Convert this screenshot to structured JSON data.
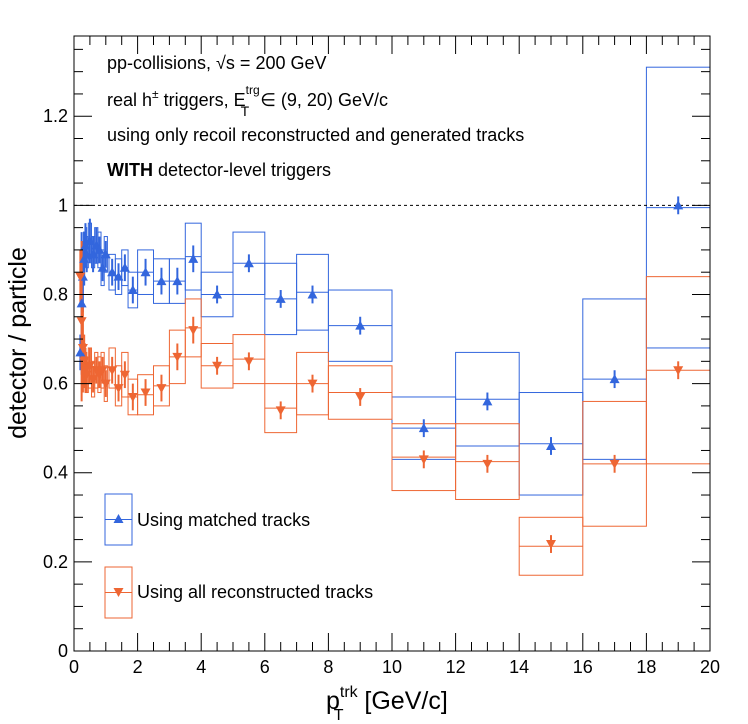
{
  "chart_data": {
    "type": "scatter",
    "xlabel": "p_T^trk [GeV/c]",
    "xlabel_main": "p",
    "xlabel_sub": "T",
    "xlabel_sup": "trk",
    "xlabel_rest": " [GeV/c]",
    "ylabel": "detector / particle",
    "xlim": [
      0,
      20
    ],
    "ylim": [
      0,
      1.38
    ],
    "x_ticks": [
      0,
      2,
      4,
      6,
      8,
      10,
      12,
      14,
      16,
      18,
      20
    ],
    "y_ticks": [
      0,
      0.2,
      0.4,
      0.6,
      0.8,
      1,
      1.2
    ],
    "x_tick_labels": [
      "0",
      "2",
      "4",
      "6",
      "8",
      "10",
      "12",
      "14",
      "16",
      "18",
      "20"
    ],
    "y_tick_labels": [
      "0",
      "0.2",
      "0.4",
      "0.6",
      "0.8",
      "1",
      "1.2"
    ],
    "reference_line": 1,
    "annotations": {
      "line1": "pp-collisions, √s = 200 GeV",
      "line2_a": "real h",
      "line2_sup": "±",
      "line2_b": " triggers, E",
      "line2_e_sup": "trg",
      "line2_e_sub": "T",
      "line2_c": " ∈ (9, 20) GeV/c",
      "line3": "using only recoil reconstructed and generated tracks",
      "line4_bold": "WITH",
      "line4_rest": " detector-level triggers"
    },
    "legend_placement": "bottom-left",
    "series": [
      {
        "name": "Using matched tracks",
        "marker": "triangle-up",
        "color": "#3366dd",
        "points": [
          {
            "x": 0.2,
            "y": 0.67,
            "yerr": 0.04
          },
          {
            "x": 0.24,
            "y": 0.78,
            "yerr": 0.16
          },
          {
            "x": 0.28,
            "y": 0.84,
            "yerr": 0.08
          },
          {
            "x": 0.32,
            "y": 0.88,
            "yerr": 0.06
          },
          {
            "x": 0.36,
            "y": 0.91,
            "yerr": 0.05
          },
          {
            "x": 0.4,
            "y": 0.89,
            "yerr": 0.04
          },
          {
            "x": 0.5,
            "y": 0.92,
            "yerr": 0.05
          },
          {
            "x": 0.6,
            "y": 0.89,
            "yerr": 0.04
          },
          {
            "x": 0.7,
            "y": 0.91,
            "yerr": 0.04
          },
          {
            "x": 0.8,
            "y": 0.9,
            "yerr": 0.03
          },
          {
            "x": 0.9,
            "y": 0.86,
            "yerr": 0.03
          },
          {
            "x": 1.0,
            "y": 0.89,
            "yerr": 0.03
          },
          {
            "x": 1.2,
            "y": 0.85,
            "yerr": 0.03
          },
          {
            "x": 1.4,
            "y": 0.84,
            "yerr": 0.03
          },
          {
            "x": 1.6,
            "y": 0.86,
            "yerr": 0.03
          },
          {
            "x": 1.85,
            "y": 0.81,
            "yerr": 0.03
          },
          {
            "x": 2.25,
            "y": 0.85,
            "yerr": 0.03
          },
          {
            "x": 2.75,
            "y": 0.83,
            "yerr": 0.03
          },
          {
            "x": 3.25,
            "y": 0.83,
            "yerr": 0.03
          },
          {
            "x": 3.75,
            "y": 0.88,
            "yerr": 0.03
          },
          {
            "x": 4.5,
            "y": 0.8,
            "yerr": 0.02
          },
          {
            "x": 5.5,
            "y": 0.87,
            "yerr": 0.02
          },
          {
            "x": 6.5,
            "y": 0.79,
            "yerr": 0.02
          },
          {
            "x": 7.5,
            "y": 0.8,
            "yerr": 0.02
          },
          {
            "x": 9,
            "y": 0.73,
            "yerr": 0.02
          },
          {
            "x": 11,
            "y": 0.5,
            "yerr": 0.02
          },
          {
            "x": 13,
            "y": 0.56,
            "yerr": 0.02
          },
          {
            "x": 15,
            "y": 0.46,
            "yerr": 0.02
          },
          {
            "x": 17,
            "y": 0.61,
            "yerr": 0.02
          },
          {
            "x": 19,
            "y": 1.0,
            "yerr": 0.02
          }
        ],
        "sys_boxes": [
          {
            "x0": 0.3,
            "x1": 0.35,
            "y0": 0.86,
            "y1": 0.94
          },
          {
            "x0": 0.35,
            "x1": 0.4,
            "y0": 0.87,
            "y1": 0.95
          },
          {
            "x0": 0.4,
            "x1": 0.45,
            "y0": 0.86,
            "y1": 0.93
          },
          {
            "x0": 0.45,
            "x1": 0.55,
            "y0": 0.88,
            "y1": 0.96
          },
          {
            "x0": 0.55,
            "x1": 0.65,
            "y0": 0.86,
            "y1": 0.93
          },
          {
            "x0": 0.65,
            "x1": 0.75,
            "y0": 0.87,
            "y1": 0.95
          },
          {
            "x0": 0.75,
            "x1": 0.85,
            "y0": 0.86,
            "y1": 0.94
          },
          {
            "x0": 0.85,
            "x1": 0.95,
            "y0": 0.82,
            "y1": 0.9
          },
          {
            "x0": 0.95,
            "x1": 1.05,
            "y0": 0.85,
            "y1": 0.93
          },
          {
            "x0": 1.1,
            "x1": 1.3,
            "y0": 0.81,
            "y1": 0.89
          },
          {
            "x0": 1.3,
            "x1": 1.5,
            "y0": 0.8,
            "y1": 0.88
          },
          {
            "x0": 1.5,
            "x1": 1.7,
            "y0": 0.82,
            "y1": 0.9
          },
          {
            "x0": 1.7,
            "x1": 2.0,
            "y0": 0.77,
            "y1": 0.85
          },
          {
            "x0": 2.0,
            "x1": 2.5,
            "y0": 0.8,
            "y1": 0.9
          },
          {
            "x0": 2.5,
            "x1": 3.0,
            "y0": 0.78,
            "y1": 0.88
          },
          {
            "x0": 3.0,
            "x1": 3.5,
            "y0": 0.78,
            "y1": 0.88
          },
          {
            "x0": 3.5,
            "x1": 4.0,
            "y0": 0.81,
            "y1": 0.96
          },
          {
            "x0": 4.0,
            "x1": 5.0,
            "y0": 0.75,
            "y1": 0.85
          },
          {
            "x0": 5.0,
            "x1": 6.0,
            "y0": 0.8,
            "y1": 0.94
          },
          {
            "x0": 6.0,
            "x1": 7.0,
            "y0": 0.71,
            "y1": 0.87
          },
          {
            "x0": 7.0,
            "x1": 8.0,
            "y0": 0.72,
            "y1": 0.89
          },
          {
            "x0": 8.0,
            "x1": 10.0,
            "y0": 0.65,
            "y1": 0.81
          },
          {
            "x0": 10.0,
            "x1": 12.0,
            "y0": 0.43,
            "y1": 0.57
          },
          {
            "x0": 12.0,
            "x1": 14.0,
            "y0": 0.46,
            "y1": 0.67
          },
          {
            "x0": 14.0,
            "x1": 16.0,
            "y0": 0.35,
            "y1": 0.58
          },
          {
            "x0": 16.0,
            "x1": 18.0,
            "y0": 0.43,
            "y1": 0.79
          },
          {
            "x0": 18.0,
            "x1": 20.0,
            "y0": 0.68,
            "y1": 1.31
          }
        ]
      },
      {
        "name": "Using all reconstructed tracks",
        "marker": "triangle-down",
        "color": "#ee6633",
        "points": [
          {
            "x": 0.2,
            "y": 0.84,
            "yerr": 0.06
          },
          {
            "x": 0.24,
            "y": 0.74,
            "yerr": 0.18
          },
          {
            "x": 0.28,
            "y": 0.68,
            "yerr": 0.1
          },
          {
            "x": 0.32,
            "y": 0.65,
            "yerr": 0.06
          },
          {
            "x": 0.36,
            "y": 0.63,
            "yerr": 0.05
          },
          {
            "x": 0.4,
            "y": 0.62,
            "yerr": 0.04
          },
          {
            "x": 0.5,
            "y": 0.64,
            "yerr": 0.04
          },
          {
            "x": 0.6,
            "y": 0.61,
            "yerr": 0.03
          },
          {
            "x": 0.7,
            "y": 0.63,
            "yerr": 0.03
          },
          {
            "x": 0.8,
            "y": 0.62,
            "yerr": 0.03
          },
          {
            "x": 0.9,
            "y": 0.63,
            "yerr": 0.03
          },
          {
            "x": 1.0,
            "y": 0.6,
            "yerr": 0.03
          },
          {
            "x": 1.2,
            "y": 0.63,
            "yerr": 0.03
          },
          {
            "x": 1.4,
            "y": 0.59,
            "yerr": 0.03
          },
          {
            "x": 1.6,
            "y": 0.62,
            "yerr": 0.03
          },
          {
            "x": 1.85,
            "y": 0.57,
            "yerr": 0.03
          },
          {
            "x": 2.25,
            "y": 0.58,
            "yerr": 0.03
          },
          {
            "x": 2.75,
            "y": 0.59,
            "yerr": 0.03
          },
          {
            "x": 3.25,
            "y": 0.66,
            "yerr": 0.03
          },
          {
            "x": 3.75,
            "y": 0.72,
            "yerr": 0.03
          },
          {
            "x": 4.5,
            "y": 0.64,
            "yerr": 0.02
          },
          {
            "x": 5.5,
            "y": 0.65,
            "yerr": 0.02
          },
          {
            "x": 6.5,
            "y": 0.54,
            "yerr": 0.02
          },
          {
            "x": 7.5,
            "y": 0.6,
            "yerr": 0.02
          },
          {
            "x": 9,
            "y": 0.57,
            "yerr": 0.02
          },
          {
            "x": 11,
            "y": 0.43,
            "yerr": 0.02
          },
          {
            "x": 13,
            "y": 0.42,
            "yerr": 0.02
          },
          {
            "x": 15,
            "y": 0.24,
            "yerr": 0.02
          },
          {
            "x": 17,
            "y": 0.42,
            "yerr": 0.02
          },
          {
            "x": 19,
            "y": 0.63,
            "yerr": 0.02
          }
        ],
        "sys_boxes": [
          {
            "x0": 0.3,
            "x1": 0.35,
            "y0": 0.6,
            "y1": 0.69
          },
          {
            "x0": 0.35,
            "x1": 0.4,
            "y0": 0.58,
            "y1": 0.67
          },
          {
            "x0": 0.4,
            "x1": 0.45,
            "y0": 0.58,
            "y1": 0.66
          },
          {
            "x0": 0.45,
            "x1": 0.55,
            "y0": 0.59,
            "y1": 0.68
          },
          {
            "x0": 0.55,
            "x1": 0.65,
            "y0": 0.57,
            "y1": 0.65
          },
          {
            "x0": 0.65,
            "x1": 0.75,
            "y0": 0.59,
            "y1": 0.67
          },
          {
            "x0": 0.75,
            "x1": 0.85,
            "y0": 0.58,
            "y1": 0.66
          },
          {
            "x0": 0.85,
            "x1": 0.95,
            "y0": 0.59,
            "y1": 0.67
          },
          {
            "x0": 0.95,
            "x1": 1.05,
            "y0": 0.56,
            "y1": 0.64
          },
          {
            "x0": 1.1,
            "x1": 1.3,
            "y0": 0.59,
            "y1": 0.68
          },
          {
            "x0": 1.3,
            "x1": 1.5,
            "y0": 0.55,
            "y1": 0.64
          },
          {
            "x0": 1.5,
            "x1": 1.7,
            "y0": 0.57,
            "y1": 0.67
          },
          {
            "x0": 1.7,
            "x1": 2.0,
            "y0": 0.53,
            "y1": 0.61
          },
          {
            "x0": 2.0,
            "x1": 2.5,
            "y0": 0.53,
            "y1": 0.62
          },
          {
            "x0": 2.5,
            "x1": 3.0,
            "y0": 0.55,
            "y1": 0.64
          },
          {
            "x0": 3.0,
            "x1": 3.5,
            "y0": 0.6,
            "y1": 0.72
          },
          {
            "x0": 3.5,
            "x1": 4.0,
            "y0": 0.66,
            "y1": 0.79
          },
          {
            "x0": 4.0,
            "x1": 5.0,
            "y0": 0.59,
            "y1": 0.69
          },
          {
            "x0": 5.0,
            "x1": 6.0,
            "y0": 0.6,
            "y1": 0.71
          },
          {
            "x0": 6.0,
            "x1": 7.0,
            "y0": 0.49,
            "y1": 0.6
          },
          {
            "x0": 7.0,
            "x1": 8.0,
            "y0": 0.53,
            "y1": 0.67
          },
          {
            "x0": 8.0,
            "x1": 10.0,
            "y0": 0.52,
            "y1": 0.64
          },
          {
            "x0": 10.0,
            "x1": 12.0,
            "y0": 0.36,
            "y1": 0.51
          },
          {
            "x0": 12.0,
            "x1": 14.0,
            "y0": 0.34,
            "y1": 0.51
          },
          {
            "x0": 14.0,
            "x1": 16.0,
            "y0": 0.17,
            "y1": 0.3
          },
          {
            "x0": 16.0,
            "x1": 18.0,
            "y0": 0.28,
            "y1": 0.56
          },
          {
            "x0": 18.0,
            "x1": 20.0,
            "y0": 0.42,
            "y1": 0.84
          }
        ]
      }
    ]
  }
}
